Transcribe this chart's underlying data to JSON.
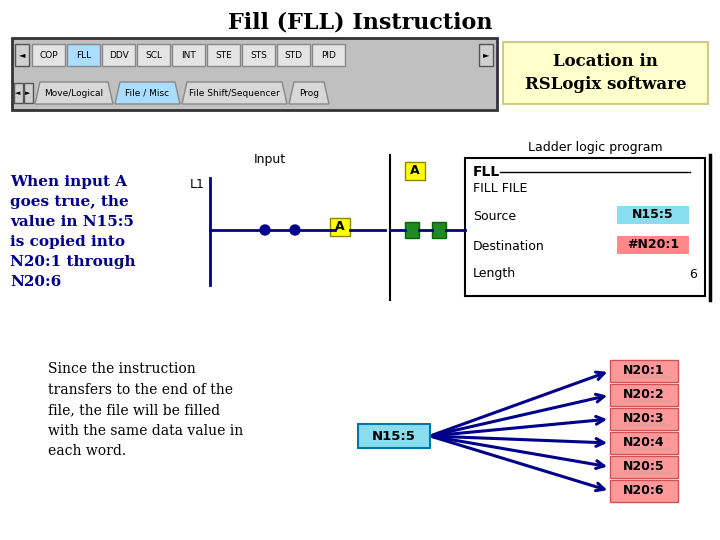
{
  "title": "Fill (FLL) Instruction",
  "title_fontsize": 16,
  "bg_color": "#ffffff",
  "toolbar_bg": "#c0c0c0",
  "toolbar_buttons": [
    "COP",
    "FLL",
    "DDV",
    "SCL",
    "INT",
    "STE",
    "STS",
    "STD",
    "PID"
  ],
  "fll_button_color": "#aaddff",
  "toolbar_tab_active": "File / Misc",
  "toolbar_tab_active_color": "#aaddff",
  "toolbar_tabs": [
    "Move/Logical",
    "File / Misc",
    "File Shift/Sequencer",
    "Prog"
  ],
  "location_box_color": "#ffffcc",
  "location_text": "Location in\nRSLogix software",
  "left_text": "When input A\ngoes true, the\nvalue in N15:5\nis copied into\nN20:1 through\nN20:6",
  "left_text_color": "#00008b",
  "bottom_text": "Since the instruction\ntransfers to the end of the\nfile, the file will be filled\nwith the same data value in\neach word.",
  "ladder_label": "Ladder logic program",
  "fll_box_title": "FLL",
  "fll_box_line2": "FILL FILE",
  "fll_source_label": "Source",
  "fll_source_value": "N15:5",
  "fll_source_color": "#88ddee",
  "fll_dest_label": "Destination",
  "fll_dest_value": "#N20:1",
  "fll_dest_color": "#ff8888",
  "fll_length_label": "Length",
  "fll_length_value": "6",
  "input_label": "Input",
  "l1_label": "L1",
  "contact_label": "A",
  "n15_box_color": "#88ddee",
  "n15_label": "N15:5",
  "n20_box_color": "#ff9999",
  "n20_labels": [
    "N20:1",
    "N20:2",
    "N20:3",
    "N20:4",
    "N20:5",
    "N20:6"
  ],
  "arrow_color": "#00008b",
  "contact_box_color": "#ffff00",
  "green_connector_color": "#228822",
  "wire_color": "#00008b"
}
